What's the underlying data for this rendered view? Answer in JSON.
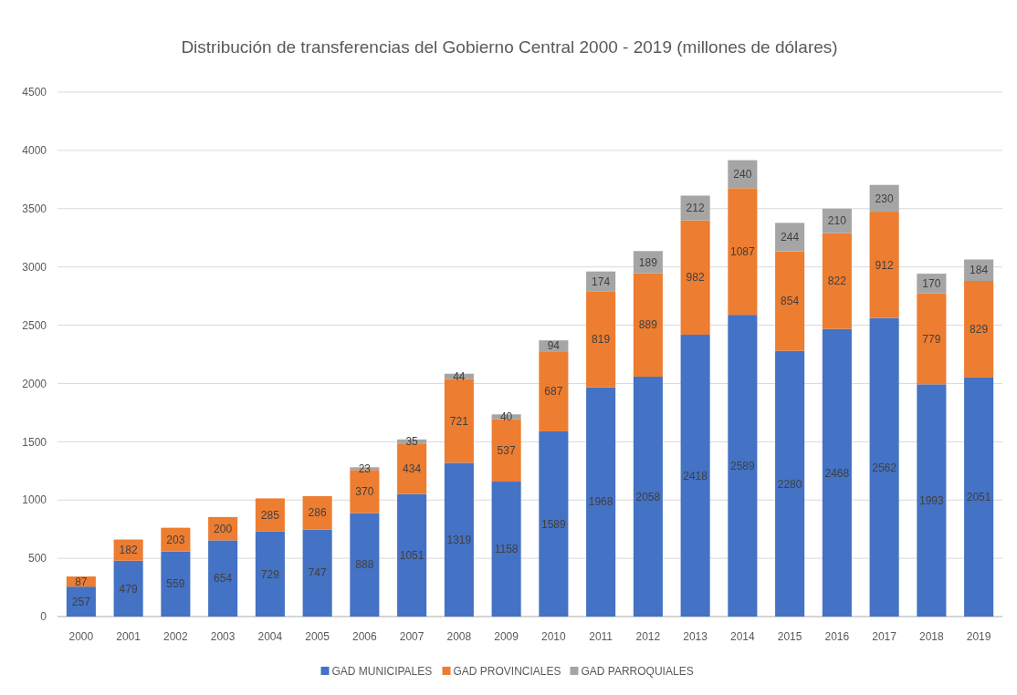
{
  "chart_data": {
    "type": "bar",
    "stacked": true,
    "title": "Distribución de transferencias del Gobierno Central 2000 - 2019 (millones de dólares)",
    "categories": [
      "2000",
      "2001",
      "2002",
      "2003",
      "2004",
      "2005",
      "2006",
      "2007",
      "2008",
      "2009",
      "2010",
      "2011",
      "2012",
      "2013",
      "2014",
      "2015",
      "2016",
      "2017",
      "2018",
      "2019"
    ],
    "series": [
      {
        "name": "GAD MUNICIPALES",
        "color": "#4472c4",
        "values": [
          257,
          479,
          559,
          654,
          729,
          747,
          888,
          1051,
          1319,
          1158,
          1589,
          1968,
          2058,
          2418,
          2589,
          2280,
          2468,
          2562,
          1993,
          2051
        ]
      },
      {
        "name": "GAD PROVINCIALES",
        "color": "#ed7d31",
        "values": [
          87,
          182,
          203,
          200,
          285,
          286,
          370,
          434,
          721,
          537,
          687,
          819,
          889,
          982,
          1087,
          854,
          822,
          912,
          779,
          829
        ]
      },
      {
        "name": "GAD PARROQUIALES",
        "color": "#a5a5a5",
        "values": [
          null,
          null,
          null,
          null,
          null,
          null,
          23,
          35,
          44,
          40,
          94,
          174,
          189,
          212,
          240,
          244,
          210,
          230,
          170,
          184
        ]
      }
    ],
    "ylim": [
      0,
      4500
    ],
    "yticks": [
      0,
      500,
      1000,
      1500,
      2000,
      2500,
      3000,
      3500,
      4000,
      4500
    ],
    "grid": "y",
    "legend": "bottom",
    "data_labels": true
  }
}
